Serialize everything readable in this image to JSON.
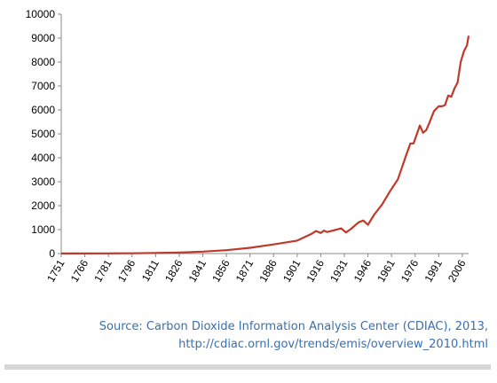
{
  "chart_data": {
    "type": "line",
    "xlabel": "",
    "ylabel": "",
    "xlim": [
      1751,
      2010
    ],
    "ylim": [
      0,
      10000
    ],
    "x_ticks": [
      "1751",
      "1766",
      "1781",
      "1796",
      "1811",
      "1826",
      "1841",
      "1856",
      "1871",
      "1886",
      "1901",
      "1916",
      "1931",
      "1946",
      "1961",
      "1976",
      "1991",
      "2006"
    ],
    "y_ticks": [
      "0",
      "1000",
      "2000",
      "3000",
      "4000",
      "5000",
      "6000",
      "7000",
      "8000",
      "9000",
      "10000"
    ],
    "grid": false,
    "legend": "none",
    "series": [
      {
        "color": "#c0392b",
        "x": [
          1751,
          1766,
          1781,
          1796,
          1811,
          1826,
          1841,
          1856,
          1871,
          1886,
          1901,
          1910,
          1913,
          1916,
          1918,
          1920,
          1925,
          1929,
          1932,
          1935,
          1940,
          1943,
          1946,
          1950,
          1955,
          1960,
          1965,
          1970,
          1973,
          1975,
          1979,
          1981,
          1983,
          1985,
          1988,
          1991,
          1993,
          1995,
          1997,
          1999,
          2001,
          2003,
          2005,
          2007,
          2009,
          2010
        ],
        "y": [
          3,
          5,
          8,
          12,
          25,
          45,
          80,
          140,
          240,
          380,
          540,
          820,
          940,
          860,
          960,
          900,
          980,
          1050,
          880,
          1020,
          1300,
          1380,
          1200,
          1630,
          2050,
          2600,
          3100,
          4050,
          4600,
          4600,
          5350,
          5050,
          5150,
          5450,
          5950,
          6150,
          6150,
          6200,
          6600,
          6550,
          6900,
          7150,
          8000,
          8450,
          8700,
          9100
        ]
      }
    ]
  },
  "source": {
    "line1": "Source: Carbon  Dioxide Information  Analysis Center (CDIAC), 2013,",
    "line2": "http://cdiac.ornl.gov/trends/emis/overview_2010.html"
  }
}
